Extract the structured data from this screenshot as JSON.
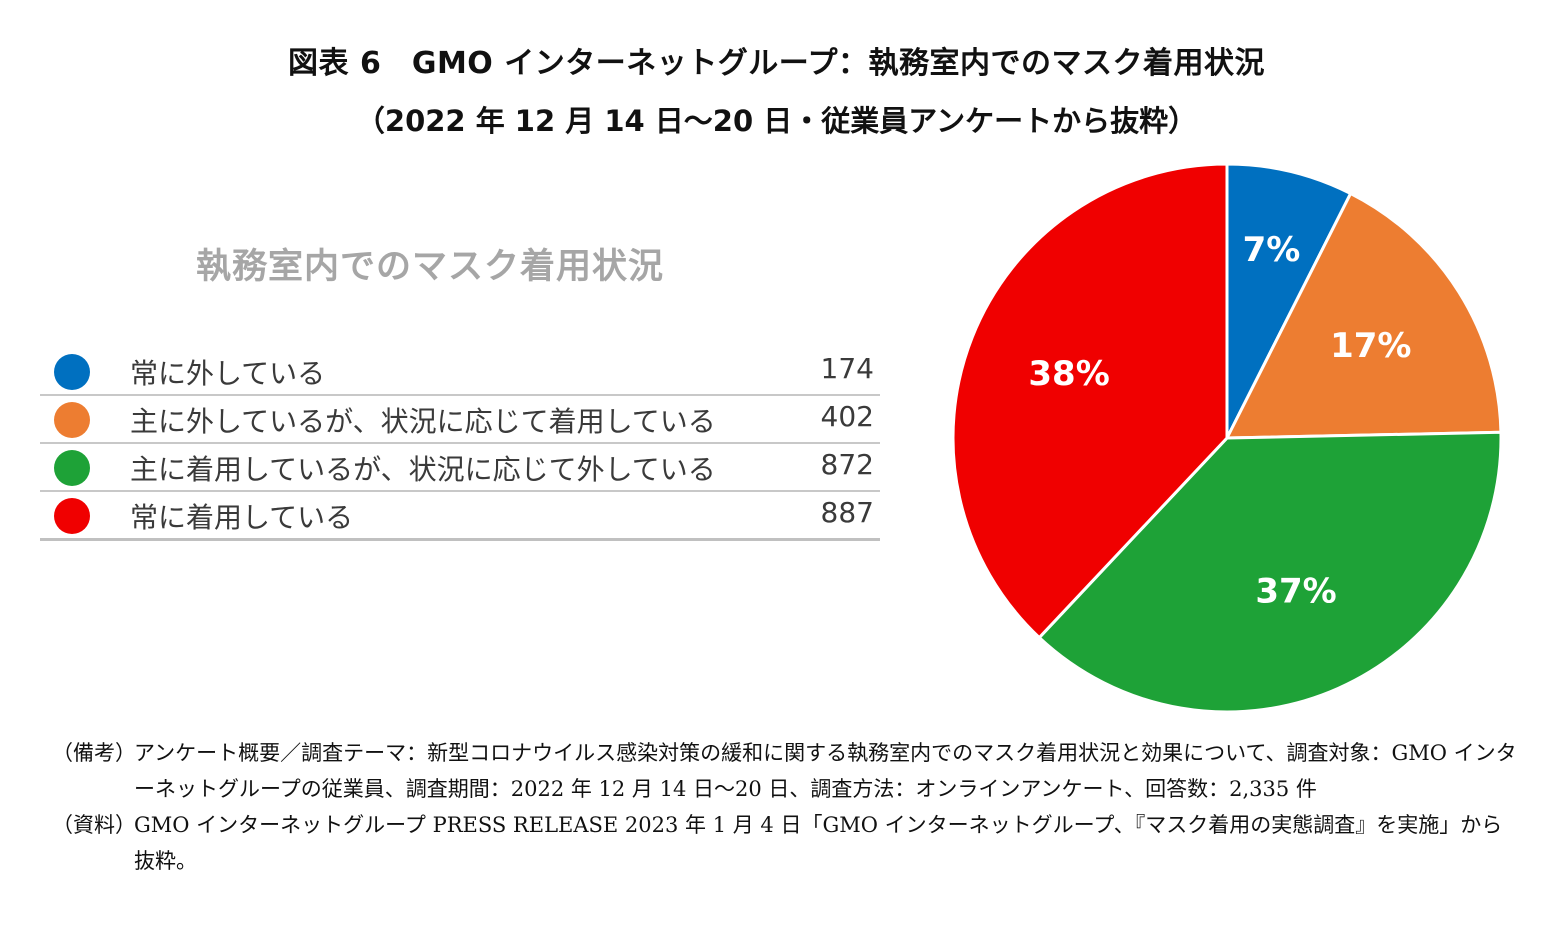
{
  "figure": {
    "title": "図表 6　GMO インターネットグループ：執務室内でのマスク着用状況",
    "subtitle": "（2022 年 12 月 14 日～20 日・従業員アンケートから抜粋）"
  },
  "chart_data": {
    "type": "pie",
    "title": "執務室内でのマスク着用状況",
    "categories": [
      "常に外している",
      "主に外しているが、状況に応じて着用している",
      "主に着用しているが、状況に応じて外している",
      "常に着用している"
    ],
    "values": [
      174,
      402,
      872,
      887
    ],
    "value_labels": [
      "174",
      "402",
      "872",
      "887"
    ],
    "percent_labels": [
      "7%",
      "17%",
      "37%",
      "38%"
    ],
    "colors": [
      "#0070c0",
      "#ed7d31",
      "#1ea237",
      "#f00000"
    ],
    "legend_placement": "left",
    "start_angle_deg": 0,
    "direction": "clockwise"
  },
  "notes": [
    {
      "head": "（備考）",
      "text": "アンケート概要／調査テーマ：新型コロナウイルス感染対策の緩和に関する執務室内でのマスク着用状況と効果について、調査対象：GMO インターネットグループの従業員、調査期間：2022 年 12 月 14 日～20 日、調査方法：オンラインアンケート、回答数：2,335 件"
    },
    {
      "head": "（資料）",
      "text": "GMO インターネットグループ PRESS RELEASE 2023 年 1 月 4 日「GMO インターネットグループ、『マスク着用の実態調査』を実施」から抜粋。"
    }
  ]
}
